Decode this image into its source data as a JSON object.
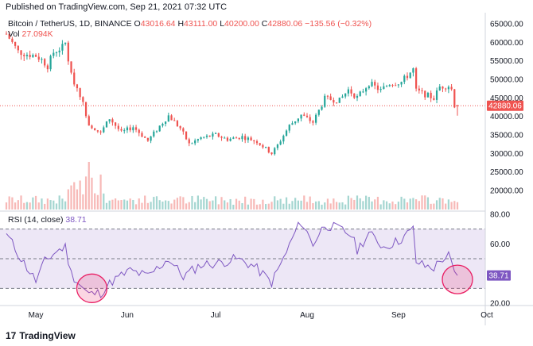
{
  "header": {
    "published": "Published on TradingView.com, Sep 21, 2021 07:32 UTC"
  },
  "legend": {
    "symbol": "Bitcoin / TetherUS, 1D, BINANCE",
    "open_label": "O",
    "open": "43016.64",
    "high_label": "H",
    "high": "43111.00",
    "low_label": "L",
    "low": "40200.00",
    "close_label": "C",
    "close": "42880.06",
    "change": "−135.56 (−0.32%)"
  },
  "volume_legend": {
    "label": "Vol",
    "value": "27.094K"
  },
  "rsi_legend": {
    "label": "RSI (14, close)",
    "value": "38.71"
  },
  "footer": {
    "logo_mark": "17",
    "brand": "TradingView"
  },
  "colors": {
    "up": "#26a69a",
    "down": "#ef5350",
    "rsi_line": "#7e57c2",
    "rsi_band": "#ede7f6",
    "highlight_circle": "#e91e63",
    "price_line": "#ef5350"
  },
  "chart_data": [
    {
      "type": "candlestick",
      "symbol": "Bitcoin / TetherUS",
      "interval": "1D",
      "exchange": "BINANCE",
      "x_ticks": [
        "May",
        "Jun",
        "Jul",
        "Aug",
        "Sep",
        "Oct"
      ],
      "y_ticks": [
        "65000.00",
        "60000.00",
        "55000.00",
        "50000.00",
        "45000.00",
        "40000.00",
        "35000.00",
        "30000.00",
        "25000.00",
        "20000.00"
      ],
      "y_range": [
        20000,
        65000
      ],
      "last_price": 42880.06,
      "last_price_label": "42880.06",
      "grid": false,
      "close_series": [
        {
          "date": "2021-04-21",
          "close": 62300
        },
        {
          "date": "2021-04-25",
          "close": 57500
        },
        {
          "date": "2021-04-28",
          "close": 56800
        },
        {
          "date": "2021-05-01",
          "close": 56400
        },
        {
          "date": "2021-05-03",
          "close": 55300
        },
        {
          "date": "2021-05-05",
          "close": 53600
        },
        {
          "date": "2021-05-07",
          "close": 57300
        },
        {
          "date": "2021-05-10",
          "close": 58700
        },
        {
          "date": "2021-05-11",
          "close": 59800
        },
        {
          "date": "2021-05-13",
          "close": 51000
        },
        {
          "date": "2021-05-16",
          "close": 46000
        },
        {
          "date": "2021-05-19",
          "close": 38000
        },
        {
          "date": "2021-05-23",
          "close": 35400
        },
        {
          "date": "2021-05-26",
          "close": 39500
        },
        {
          "date": "2021-05-30",
          "close": 35600
        },
        {
          "date": "2021-06-03",
          "close": 37200
        },
        {
          "date": "2021-06-08",
          "close": 33400
        },
        {
          "date": "2021-06-12",
          "close": 37400
        },
        {
          "date": "2021-06-15",
          "close": 40200
        },
        {
          "date": "2021-06-19",
          "close": 36800
        },
        {
          "date": "2021-06-22",
          "close": 32500
        },
        {
          "date": "2021-06-26",
          "close": 34200
        },
        {
          "date": "2021-07-01",
          "close": 35000
        },
        {
          "date": "2021-07-05",
          "close": 33800
        },
        {
          "date": "2021-07-10",
          "close": 34500
        },
        {
          "date": "2021-07-15",
          "close": 33200
        },
        {
          "date": "2021-07-20",
          "close": 30000
        },
        {
          "date": "2021-07-22",
          "close": 32200
        },
        {
          "date": "2021-07-26",
          "close": 37500
        },
        {
          "date": "2021-07-30",
          "close": 40400
        },
        {
          "date": "2021-08-03",
          "close": 38400
        },
        {
          "date": "2021-08-07",
          "close": 44800
        },
        {
          "date": "2021-08-12",
          "close": 44300
        },
        {
          "date": "2021-08-15",
          "close": 47200
        },
        {
          "date": "2021-08-18",
          "close": 45100
        },
        {
          "date": "2021-08-22",
          "close": 49000
        },
        {
          "date": "2021-08-26",
          "close": 47000
        },
        {
          "date": "2021-08-29",
          "close": 48900
        },
        {
          "date": "2021-09-02",
          "close": 49300
        },
        {
          "date": "2021-09-06",
          "close": 52700
        },
        {
          "date": "2021-09-07",
          "close": 46900
        },
        {
          "date": "2021-09-09",
          "close": 46300
        },
        {
          "date": "2021-09-13",
          "close": 44900
        },
        {
          "date": "2021-09-15",
          "close": 48000
        },
        {
          "date": "2021-09-18",
          "close": 48300
        },
        {
          "date": "2021-09-19",
          "close": 47300
        },
        {
          "date": "2021-09-20",
          "close": 43000
        },
        {
          "date": "2021-09-21",
          "close": 42880
        }
      ]
    },
    {
      "type": "bar",
      "name": "Vol",
      "last_value": "27.094K",
      "notes": "volume histogram, heights visually estimated"
    },
    {
      "type": "line",
      "name": "RSI (14, close)",
      "y_ticks": [
        "80.00",
        "60.00",
        "40.00",
        "20.00"
      ],
      "y_range": [
        20,
        80
      ],
      "bands": [
        30,
        70
      ],
      "midline": 50,
      "last_value": 38.71,
      "points": [
        {
          "date": "2021-04-21",
          "value": 67
        },
        {
          "date": "2021-04-26",
          "value": 50
        },
        {
          "date": "2021-05-01",
          "value": 35
        },
        {
          "date": "2021-05-04",
          "value": 48
        },
        {
          "date": "2021-05-08",
          "value": 55
        },
        {
          "date": "2021-05-11",
          "value": 58
        },
        {
          "date": "2021-05-13",
          "value": 40
        },
        {
          "date": "2021-05-17",
          "value": 30
        },
        {
          "date": "2021-05-19",
          "value": 26
        },
        {
          "date": "2021-05-23",
          "value": 27
        },
        {
          "date": "2021-05-27",
          "value": 35
        },
        {
          "date": "2021-06-02",
          "value": 42
        },
        {
          "date": "2021-06-08",
          "value": 38
        },
        {
          "date": "2021-06-15",
          "value": 50
        },
        {
          "date": "2021-06-20",
          "value": 38
        },
        {
          "date": "2021-06-26",
          "value": 46
        },
        {
          "date": "2021-07-02",
          "value": 47
        },
        {
          "date": "2021-07-08",
          "value": 50
        },
        {
          "date": "2021-07-14",
          "value": 45
        },
        {
          "date": "2021-07-20",
          "value": 34
        },
        {
          "date": "2021-07-24",
          "value": 50
        },
        {
          "date": "2021-07-28",
          "value": 68
        },
        {
          "date": "2021-07-30",
          "value": 75
        },
        {
          "date": "2021-08-03",
          "value": 60
        },
        {
          "date": "2021-08-07",
          "value": 73
        },
        {
          "date": "2021-08-12",
          "value": 70
        },
        {
          "date": "2021-08-16",
          "value": 66
        },
        {
          "date": "2021-08-18",
          "value": 56
        },
        {
          "date": "2021-08-22",
          "value": 67
        },
        {
          "date": "2021-08-27",
          "value": 58
        },
        {
          "date": "2021-09-01",
          "value": 62
        },
        {
          "date": "2021-09-06",
          "value": 70
        },
        {
          "date": "2021-09-07",
          "value": 48
        },
        {
          "date": "2021-09-10",
          "value": 45
        },
        {
          "date": "2021-09-13",
          "value": 44
        },
        {
          "date": "2021-09-16",
          "value": 50
        },
        {
          "date": "2021-09-18",
          "value": 52
        },
        {
          "date": "2021-09-20",
          "value": 40
        },
        {
          "date": "2021-09-21",
          "value": 38.71
        }
      ],
      "highlight_circles": [
        {
          "center_date": "2021-05-20",
          "center_value": 30
        },
        {
          "center_date": "2021-09-21",
          "center_value": 36
        }
      ]
    }
  ]
}
